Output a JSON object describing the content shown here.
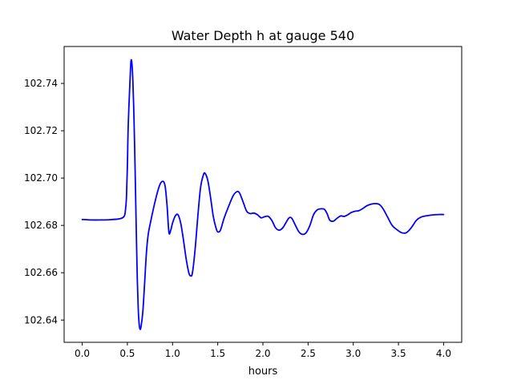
{
  "chart_data": {
    "type": "line",
    "title": "Water Depth h at gauge 540",
    "xlabel": "hours",
    "ylabel": "",
    "xlim": [
      -0.2,
      4.2
    ],
    "ylim": [
      102.6306,
      102.7556
    ],
    "x_ticks": [
      0.0,
      0.5,
      1.0,
      1.5,
      2.0,
      2.5,
      3.0,
      3.5,
      4.0
    ],
    "x_tick_labels": [
      "0.0",
      "0.5",
      "1.0",
      "1.5",
      "2.0",
      "2.5",
      "3.0",
      "3.5",
      "4.0"
    ],
    "y_ticks": [
      102.64,
      102.66,
      102.68,
      102.7,
      102.72,
      102.74
    ],
    "y_tick_labels": [
      "102.64",
      "102.66",
      "102.68",
      "102.70",
      "102.72",
      "102.74"
    ],
    "grid": false,
    "legend": "none",
    "series": [
      {
        "color": "#0000ff",
        "points": [
          [
            0.0,
            102.6825
          ],
          [
            0.1,
            102.6823
          ],
          [
            0.2,
            102.6823
          ],
          [
            0.3,
            102.6824
          ],
          [
            0.4,
            102.6827
          ],
          [
            0.45,
            102.6833
          ],
          [
            0.47,
            102.6843
          ],
          [
            0.48,
            102.687
          ],
          [
            0.49,
            102.692
          ],
          [
            0.5,
            102.705
          ],
          [
            0.51,
            102.723
          ],
          [
            0.53,
            102.742
          ],
          [
            0.54,
            102.7495
          ],
          [
            0.55,
            102.7485
          ],
          [
            0.56,
            102.742
          ],
          [
            0.57,
            102.73
          ],
          [
            0.58,
            102.714
          ],
          [
            0.59,
            102.695
          ],
          [
            0.6,
            102.675
          ],
          [
            0.61,
            102.657
          ],
          [
            0.62,
            102.645
          ],
          [
            0.63,
            102.6385
          ],
          [
            0.64,
            102.6362
          ],
          [
            0.65,
            102.637
          ],
          [
            0.67,
            102.643
          ],
          [
            0.69,
            102.655
          ],
          [
            0.71,
            102.668
          ],
          [
            0.73,
            102.676
          ],
          [
            0.76,
            102.682
          ],
          [
            0.8,
            102.689
          ],
          [
            0.84,
            102.695
          ],
          [
            0.87,
            102.698
          ],
          [
            0.9,
            102.6985
          ],
          [
            0.92,
            102.696
          ],
          [
            0.94,
            102.688
          ],
          [
            0.96,
            102.677
          ],
          [
            0.98,
            102.678
          ],
          [
            1.0,
            102.681
          ],
          [
            1.03,
            102.684
          ],
          [
            1.06,
            102.6845
          ],
          [
            1.09,
            102.681
          ],
          [
            1.12,
            102.674
          ],
          [
            1.15,
            102.666
          ],
          [
            1.18,
            102.66
          ],
          [
            1.2,
            102.6587
          ],
          [
            1.22,
            102.66
          ],
          [
            1.25,
            102.67
          ],
          [
            1.28,
            102.684
          ],
          [
            1.31,
            102.696
          ],
          [
            1.34,
            102.7012
          ],
          [
            1.36,
            102.702
          ],
          [
            1.39,
            102.699
          ],
          [
            1.42,
            102.692
          ],
          [
            1.45,
            102.684
          ],
          [
            1.48,
            102.679
          ],
          [
            1.5,
            102.6773
          ],
          [
            1.53,
            102.678
          ],
          [
            1.57,
            102.683
          ],
          [
            1.62,
            102.688
          ],
          [
            1.67,
            102.6925
          ],
          [
            1.71,
            102.6942
          ],
          [
            1.74,
            102.6938
          ],
          [
            1.78,
            102.69
          ],
          [
            1.82,
            102.686
          ],
          [
            1.86,
            102.685
          ],
          [
            1.9,
            102.6852
          ],
          [
            1.94,
            102.6845
          ],
          [
            1.98,
            102.6832
          ],
          [
            2.02,
            102.6837
          ],
          [
            2.06,
            102.6838
          ],
          [
            2.1,
            102.682
          ],
          [
            2.14,
            102.679
          ],
          [
            2.18,
            102.678
          ],
          [
            2.22,
            102.679
          ],
          [
            2.26,
            102.6815
          ],
          [
            2.29,
            102.6832
          ],
          [
            2.32,
            102.683
          ],
          [
            2.36,
            102.68
          ],
          [
            2.4,
            102.6772
          ],
          [
            2.44,
            102.6762
          ],
          [
            2.48,
            102.677
          ],
          [
            2.52,
            102.68
          ],
          [
            2.56,
            102.6845
          ],
          [
            2.6,
            102.6865
          ],
          [
            2.64,
            102.687
          ],
          [
            2.68,
            102.6868
          ],
          [
            2.71,
            102.685
          ],
          [
            2.74,
            102.6822
          ],
          [
            2.78,
            102.6818
          ],
          [
            2.82,
            102.683
          ],
          [
            2.86,
            102.684
          ],
          [
            2.9,
            102.6838
          ],
          [
            2.94,
            102.6845
          ],
          [
            2.98,
            102.6855
          ],
          [
            3.02,
            102.686
          ],
          [
            3.06,
            102.6862
          ],
          [
            3.1,
            102.687
          ],
          [
            3.15,
            102.6883
          ],
          [
            3.2,
            102.689
          ],
          [
            3.25,
            102.6892
          ],
          [
            3.29,
            102.6888
          ],
          [
            3.33,
            102.687
          ],
          [
            3.38,
            102.6835
          ],
          [
            3.43,
            102.68
          ],
          [
            3.48,
            102.6783
          ],
          [
            3.53,
            102.677
          ],
          [
            3.58,
            102.6768
          ],
          [
            3.62,
            102.678
          ],
          [
            3.66,
            102.68
          ],
          [
            3.7,
            102.6822
          ],
          [
            3.75,
            102.6835
          ],
          [
            3.8,
            102.684
          ],
          [
            3.85,
            102.6843
          ],
          [
            3.9,
            102.6845
          ],
          [
            3.95,
            102.6846
          ],
          [
            4.0,
            102.6846
          ]
        ]
      }
    ]
  }
}
